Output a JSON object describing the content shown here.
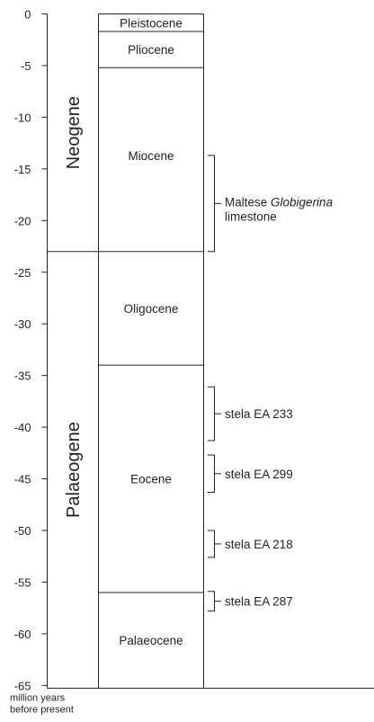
{
  "chart_data": {
    "type": "timescale",
    "axis": {
      "label_lines": [
        "million years",
        "before present"
      ],
      "ylim": [
        0,
        -65
      ],
      "ticks": [
        0,
        -5,
        -10,
        -15,
        -20,
        -25,
        -30,
        -35,
        -40,
        -45,
        -50,
        -55,
        -60,
        -65
      ]
    },
    "periods": [
      {
        "name": "Neogene",
        "top": 0,
        "bottom": -23
      },
      {
        "name": "Palaeogene",
        "top": -23,
        "bottom": -66
      }
    ],
    "epochs": [
      {
        "name": "Pleistocene",
        "top": 0,
        "bottom": -1.7
      },
      {
        "name": "Pliocene",
        "top": -1.7,
        "bottom": -5.2
      },
      {
        "name": "Miocene",
        "top": -5.2,
        "bottom": -23
      },
      {
        "name": "Oligocene",
        "top": -23,
        "bottom": -34
      },
      {
        "name": "Eocene",
        "top": -34,
        "bottom": -56
      },
      {
        "name": "Palaeocene",
        "top": -56,
        "bottom": -66
      }
    ],
    "annotations": [
      {
        "label_parts": [
          {
            "text": "Maltese ",
            "italic": false
          },
          {
            "text": "Globigerina",
            "italic": true
          }
        ],
        "label_line2": "limestone",
        "top": -13.7,
        "bottom": -23
      },
      {
        "label_parts": [
          {
            "text": "stela EA 233",
            "italic": false
          }
        ],
        "label_line2": "",
        "top": -36.1,
        "bottom": -41.3
      },
      {
        "label_parts": [
          {
            "text": "stela EA 299",
            "italic": false
          }
        ],
        "label_line2": "",
        "top": -42.7,
        "bottom": -46.3
      },
      {
        "label_parts": [
          {
            "text": "stela EA 218",
            "italic": false
          }
        ],
        "label_line2": "",
        "top": -50.0,
        "bottom": -52.6
      },
      {
        "label_parts": [
          {
            "text": "stela EA 287",
            "italic": false
          }
        ],
        "label_line2": "",
        "top": -55.9,
        "bottom": -57.8
      }
    ]
  }
}
